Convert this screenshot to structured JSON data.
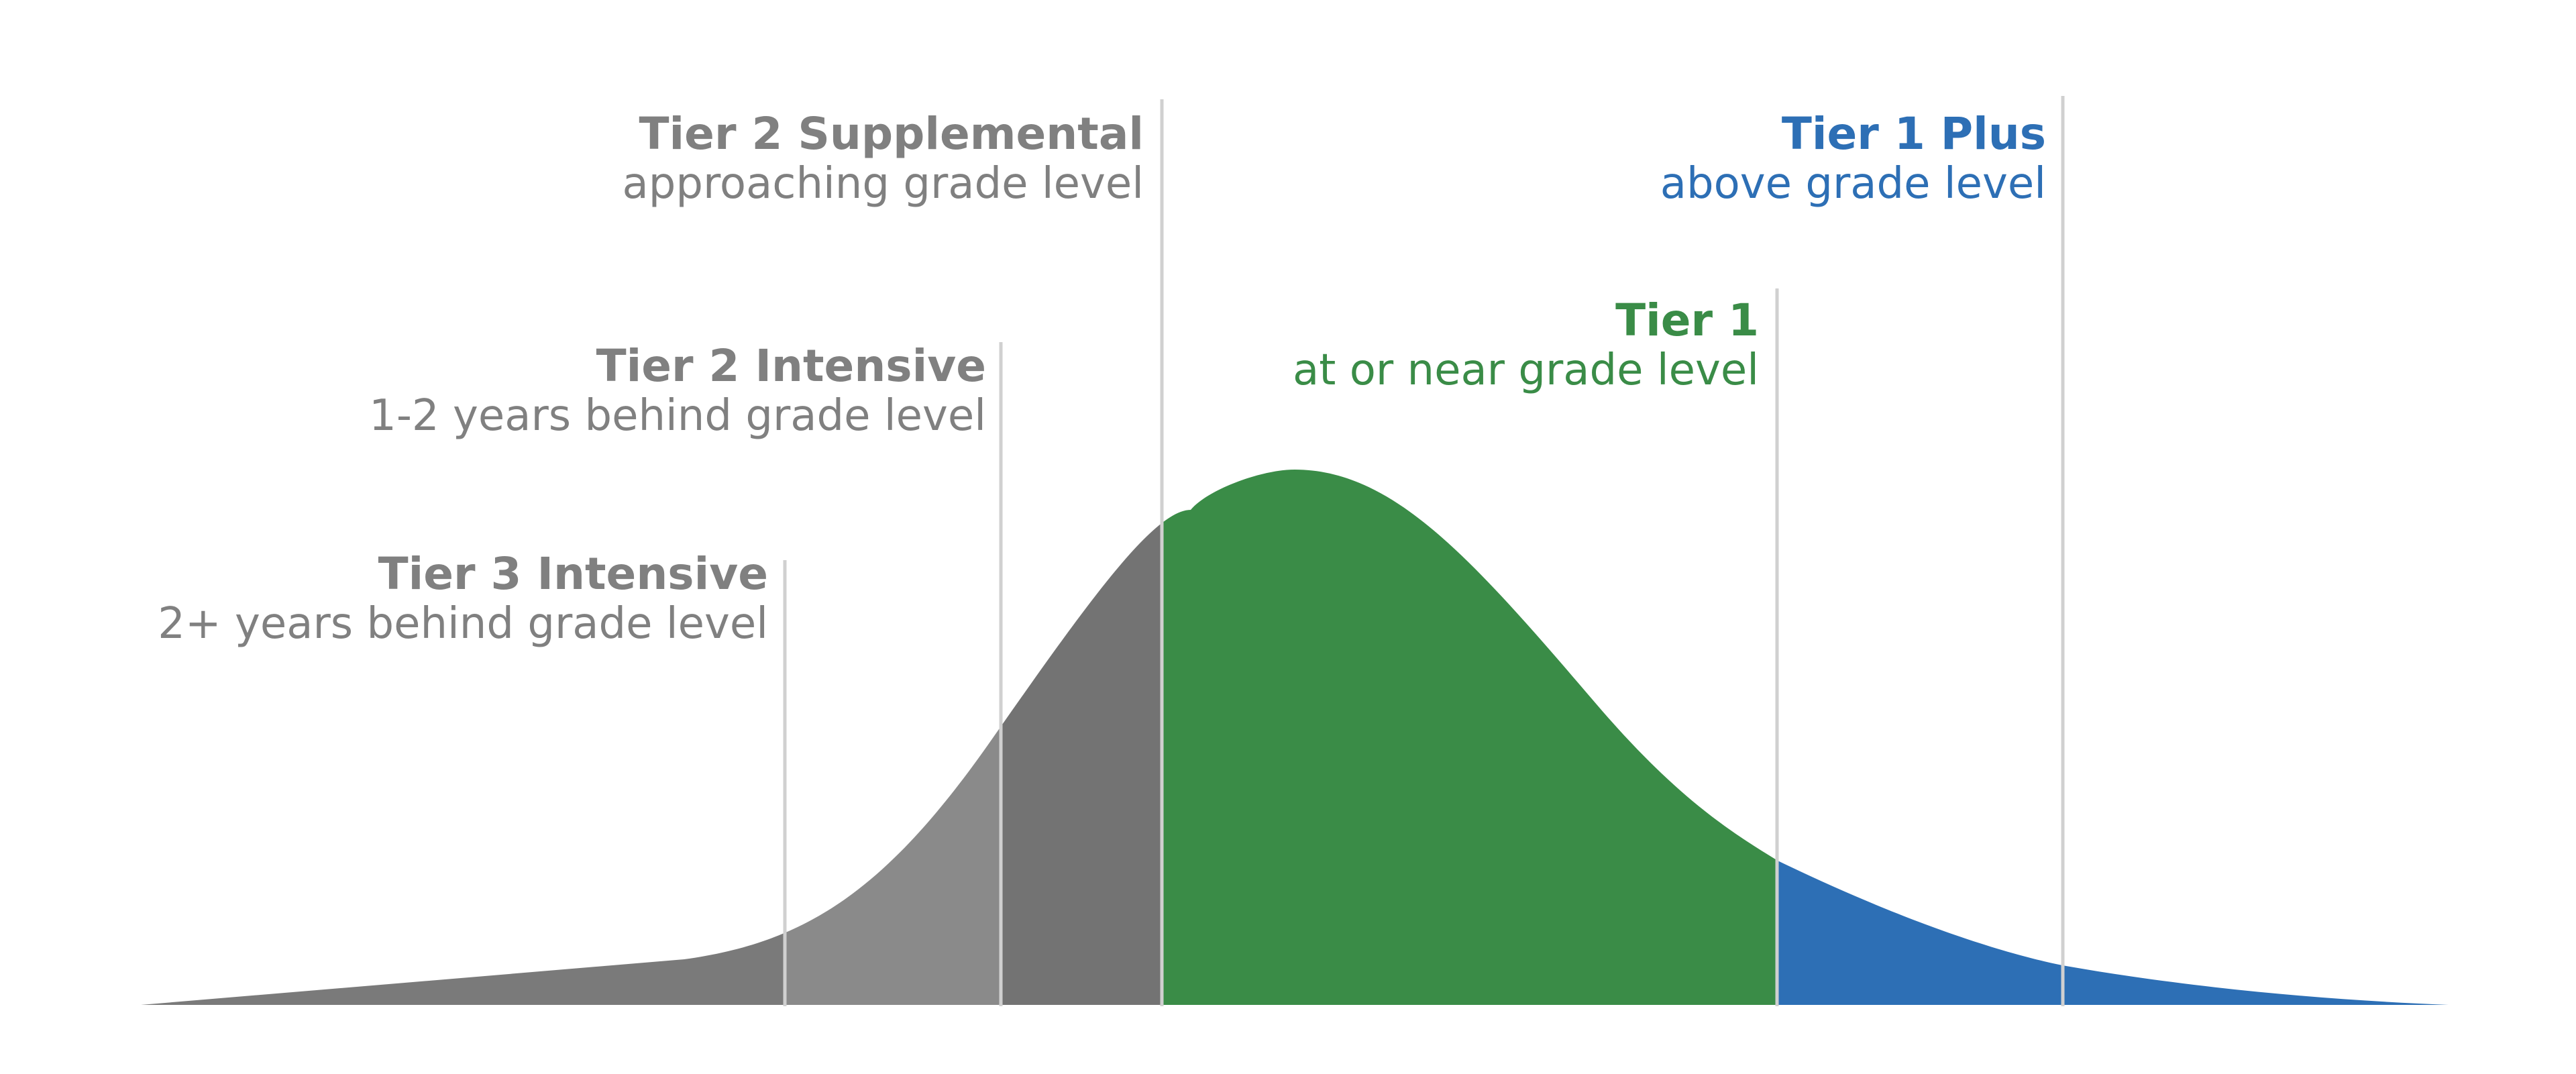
{
  "colors": {
    "tier3_fill": "#7a7a7a",
    "tier2_intensive_fill": "#8a8a8a",
    "tier2_supplemental_fill": "#737373",
    "tier1_fill": "#3a8c47",
    "tier1_plus_fill": "#2d6fb5",
    "gray_label": "#808080",
    "green_label": "#3a8c47",
    "blue_label": "#2d6fb5",
    "divider": "#d0d0d0"
  },
  "tiers": [
    {
      "id": "tier3-intensive",
      "title": "Tier 3 Intensive",
      "subtitle": "2+ years behind grade level",
      "label_color": "gray_label"
    },
    {
      "id": "tier2-intensive",
      "title": "Tier 2 Intensive",
      "subtitle": "1-2 years behind grade level",
      "label_color": "gray_label"
    },
    {
      "id": "tier2-supplemental",
      "title": "Tier 2 Supplemental",
      "subtitle": "approaching grade level",
      "label_color": "gray_label"
    },
    {
      "id": "tier1",
      "title": "Tier 1",
      "subtitle": "at or near grade level",
      "label_color": "green_label"
    },
    {
      "id": "tier1-plus",
      "title": "Tier 1 Plus",
      "subtitle": "above grade level",
      "label_color": "blue_label"
    }
  ]
}
